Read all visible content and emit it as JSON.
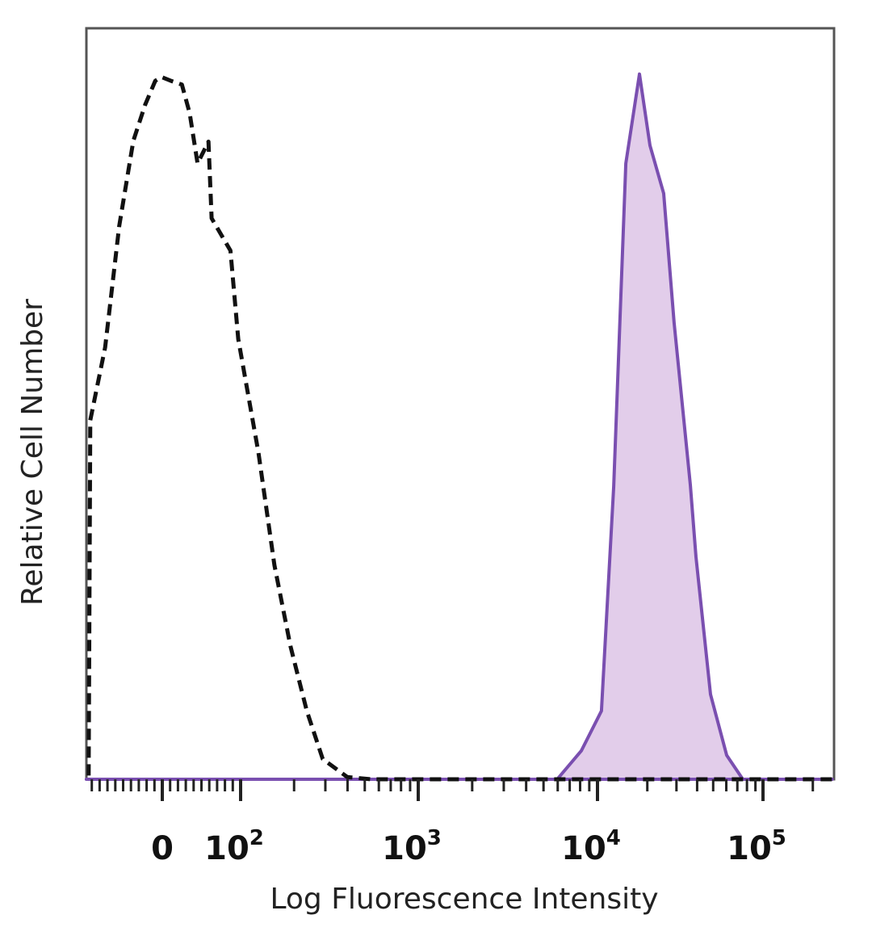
{
  "chart_data": {
    "type": "area",
    "xlabel": "Log Fluorescence Intensity",
    "ylabel": "Relative Cell Number",
    "x_scale": "biexponential",
    "xlim": [
      -97,
      262144
    ],
    "ylim": [
      0,
      100
    ],
    "x_ticks": [
      {
        "value": 0,
        "base": "0",
        "exp": ""
      },
      {
        "value": 100,
        "base": "10",
        "exp": "2"
      },
      {
        "value": 1000,
        "base": "10",
        "exp": "3"
      },
      {
        "value": 10000,
        "base": "10",
        "exp": "4"
      },
      {
        "value": 100000,
        "base": "10",
        "exp": "5"
      }
    ],
    "grid": false,
    "colors": {
      "stained_stroke": "#7a4fb0",
      "stained_fill": "#e2cdea",
      "control_stroke": "#111111"
    },
    "series": [
      {
        "style": "dashed-outline",
        "x": [
          -94,
          -92,
          -73,
          -55,
          -37,
          -22,
          -9,
          -1,
          11,
          25,
          35,
          45,
          59,
          63,
          87,
          97,
          126,
          155,
          191,
          236,
          290,
          398,
          543,
          262144
        ],
        "y": [
          0.5,
          47.8,
          57.5,
          73.7,
          85,
          89.8,
          93,
          93.5,
          93,
          92.5,
          88.7,
          82,
          84.9,
          74.7,
          70.4,
          58.6,
          43.5,
          28.5,
          17.7,
          9.1,
          2.7,
          0.3,
          0,
          0
        ]
      },
      {
        "style": "filled",
        "x": [
          -97,
          5960,
          8130,
          10570,
          12530,
          14840,
          17930,
          20760,
          25120,
          29050,
          36370,
          39350,
          48170,
          60300,
          75500,
          262144
        ],
        "y": [
          0,
          0,
          3.8,
          9.1,
          39,
          82,
          93.9,
          84.4,
          78,
          60.8,
          39.2,
          29.6,
          11.3,
          3.2,
          0,
          0
        ]
      }
    ]
  }
}
